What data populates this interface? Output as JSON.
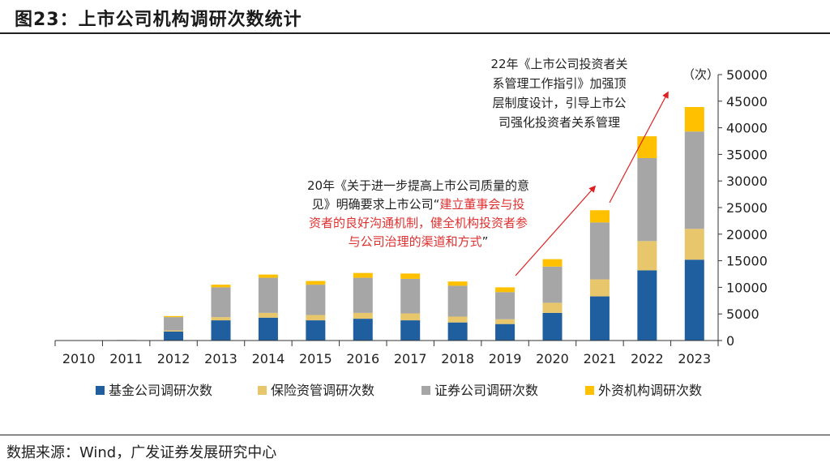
{
  "page": {
    "title": "图23：上市公司机构调研次数统计",
    "source": "数据来源：Wind，广发证券发展研究中心"
  },
  "chart_data": {
    "type": "bar",
    "stacked": true,
    "title": "图23：上市公司机构调研次数统计",
    "categories": [
      "2010",
      "2011",
      "2012",
      "2013",
      "2014",
      "2015",
      "2016",
      "2017",
      "2018",
      "2019",
      "2020",
      "2021",
      "2022",
      "2023"
    ],
    "series": [
      {
        "name": "基金公司调研次数",
        "color": "#1f5fa0",
        "values": [
          0,
          0,
          1700,
          3800,
          4300,
          3800,
          4100,
          3800,
          3400,
          3100,
          5200,
          8300,
          13200,
          15200
        ]
      },
      {
        "name": "保险资管调研次数",
        "color": "#e8c66b",
        "values": [
          0,
          0,
          200,
          600,
          900,
          1000,
          1100,
          1300,
          1100,
          900,
          1900,
          3200,
          5500,
          5800
        ]
      },
      {
        "name": "证券公司调研次数",
        "color": "#a6a6a6",
        "values": [
          0,
          100,
          2500,
          5600,
          6600,
          5700,
          6600,
          6500,
          5800,
          5100,
          6800,
          10700,
          15600,
          18300
        ]
      },
      {
        "name": "外资机构调研次数",
        "color": "#ffc000",
        "values": [
          0,
          0,
          200,
          500,
          600,
          700,
          900,
          1000,
          800,
          900,
          1400,
          2300,
          4100,
          4600
        ]
      }
    ],
    "ylabel": "（次）",
    "ylim": [
      0,
      50000
    ],
    "yticks": [
      0,
      5000,
      10000,
      15000,
      20000,
      25000,
      30000,
      35000,
      40000,
      45000,
      50000
    ],
    "y_axis_side": "right",
    "legend_position": "bottom",
    "annotations": [
      {
        "id": "ann2020",
        "lines": [
          [
            {
              "text": "20年《关于进一步提高上市公司质量的意",
              "color": "#222222"
            }
          ],
          [
            {
              "text": "见》明确要求上市公司“",
              "color": "#222222"
            },
            {
              "text": "建立董事会与投",
              "color": "#e03030"
            }
          ],
          [
            {
              "text": "资者的良好沟通机制，健全机构投资者参",
              "color": "#e03030"
            }
          ],
          [
            {
              "text": "与公司治理的渠道和方式",
              "color": "#e03030"
            },
            {
              "text": "”",
              "color": "#222222"
            }
          ]
        ]
      },
      {
        "id": "ann2022",
        "lines": [
          [
            {
              "text": "22年《上市公司投资者关",
              "color": "#222222"
            }
          ],
          [
            {
              "text": "系管理工作指引》加强顶",
              "color": "#222222"
            }
          ],
          [
            {
              "text": "层制度设计，引导上市公",
              "color": "#222222"
            }
          ],
          [
            {
              "text": "司强化投资者关系管理",
              "color": "#222222"
            }
          ]
        ]
      }
    ]
  }
}
